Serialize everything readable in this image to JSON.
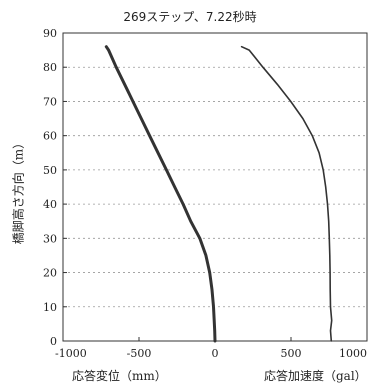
{
  "chart_data": {
    "type": "line",
    "title": "269ステップ、7.22秒時",
    "ylabel": "橋脚高さ方向（m）",
    "ylim": [
      0,
      90
    ],
    "yticks": [
      0,
      10,
      20,
      30,
      40,
      50,
      60,
      70,
      80,
      90
    ],
    "xlim": [
      -1000,
      1000
    ],
    "xticks": [
      -1000,
      -500,
      0,
      500,
      1000
    ],
    "xtick_labels": [
      "-1000",
      "-500",
      "0",
      "500",
      "1000"
    ],
    "xlabels": [
      "応答変位（mm）",
      "応答加速度（gal）"
    ],
    "grid": {
      "x": false,
      "y": true
    },
    "series": [
      {
        "line": "thick",
        "points": [
          [
            0,
            0
          ],
          [
            -2,
            3
          ],
          [
            -5,
            6
          ],
          [
            -10,
            10
          ],
          [
            -20,
            15
          ],
          [
            -35,
            20
          ],
          [
            -60,
            25
          ],
          [
            -100,
            30
          ],
          [
            -160,
            35
          ],
          [
            -210,
            40
          ],
          [
            -265,
            45
          ],
          [
            -320,
            50
          ],
          [
            -375,
            55
          ],
          [
            -430,
            60
          ],
          [
            -485,
            65
          ],
          [
            -540,
            70
          ],
          [
            -595,
            75
          ],
          [
            -650,
            80
          ],
          [
            -700,
            85
          ],
          [
            -715,
            86
          ]
        ]
      },
      {
        "line": "thin",
        "points": [
          [
            765,
            0
          ],
          [
            760,
            3
          ],
          [
            768,
            6
          ],
          [
            760,
            10
          ],
          [
            758,
            15
          ],
          [
            757,
            20
          ],
          [
            755,
            25
          ],
          [
            752,
            30
          ],
          [
            748,
            35
          ],
          [
            740,
            40
          ],
          [
            728,
            45
          ],
          [
            712,
            50
          ],
          [
            685,
            55
          ],
          [
            640,
            60
          ],
          [
            578,
            65
          ],
          [
            498,
            70
          ],
          [
            410,
            75
          ],
          [
            315,
            80
          ],
          [
            225,
            85
          ],
          [
            175,
            86
          ]
        ]
      }
    ]
  }
}
